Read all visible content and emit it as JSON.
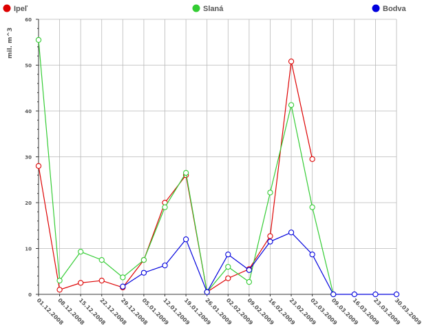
{
  "chart_data": {
    "type": "line",
    "ylabel": "mil. m^3",
    "xlabel": "",
    "title": "",
    "ylim": [
      0,
      60
    ],
    "yticks": [
      0,
      10,
      20,
      30,
      40,
      50,
      60
    ],
    "grid": true,
    "legend_placement": "top",
    "categories": [
      "01.12.2008",
      "08.12.2008",
      "15.12.2008",
      "22.12.2008",
      "29.12.2008",
      "05.01.2009",
      "12.01.2009",
      "19.01.2009",
      "26.01.2009",
      "02.02.2009",
      "09.02.2009",
      "16.02.2009",
      "23.02.2009",
      "02.03.2009",
      "09.03.2009",
      "16.03.2009",
      "23.03.2009",
      "30.03.2009"
    ],
    "series": [
      {
        "name": "Ipeľ",
        "color": "#dd0000",
        "values": [
          28,
          1,
          2.5,
          3,
          1.5,
          7.5,
          20,
          26,
          0.5,
          3.5,
          5.5,
          12.7,
          50.8,
          29.5,
          null,
          null,
          null,
          null
        ]
      },
      {
        "name": "Slaná",
        "color": "#33cc33",
        "values": [
          55.5,
          3,
          9.3,
          7.5,
          3.7,
          7.5,
          19,
          26.5,
          0.5,
          6,
          2.7,
          22.2,
          41.3,
          19,
          0,
          null,
          null,
          null
        ]
      },
      {
        "name": "Bodva",
        "color": "#0000dd",
        "values": [
          null,
          null,
          null,
          null,
          1.7,
          4.7,
          6.3,
          12,
          0.5,
          8.7,
          5.3,
          11.5,
          13.5,
          8.7,
          0,
          0,
          0,
          0
        ]
      }
    ]
  }
}
